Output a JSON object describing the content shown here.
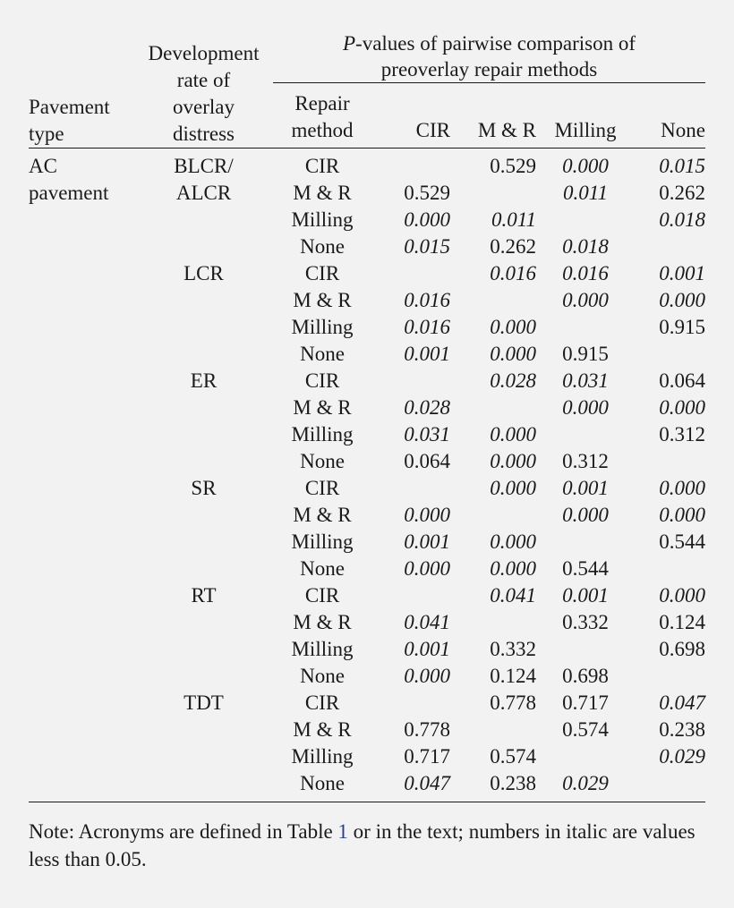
{
  "header": {
    "pavement_type": [
      "Pavement",
      "type"
    ],
    "development_rate": [
      "Development",
      "rate of",
      "overlay",
      "distress"
    ],
    "pvalues_title_italic": "P",
    "pvalues_title_rest_line1": "-values of pairwise comparison of",
    "pvalues_title_line2": "preoverlay repair methods",
    "repair_method": [
      "Repair",
      "method"
    ],
    "columns": [
      "CIR",
      "M & R",
      "Milling",
      "None"
    ]
  },
  "pavement_type_value": [
    "AC",
    "pavement"
  ],
  "groups": [
    {
      "rate": [
        "BLCR/",
        "ALCR"
      ],
      "rows": [
        {
          "method": "CIR",
          "values": [
            "",
            "0.529",
            "0.000",
            "0.015"
          ],
          "italic": [
            false,
            false,
            true,
            true
          ]
        },
        {
          "method": "M & R",
          "values": [
            "0.529",
            "",
            "0.011",
            "0.262"
          ],
          "italic": [
            false,
            false,
            true,
            false
          ]
        },
        {
          "method": "Milling",
          "values": [
            "0.000",
            "0.011",
            "",
            "0.018"
          ],
          "italic": [
            true,
            true,
            false,
            true
          ]
        },
        {
          "method": "None",
          "values": [
            "0.015",
            "0.262",
            "0.018",
            ""
          ],
          "italic": [
            true,
            false,
            true,
            false
          ]
        }
      ]
    },
    {
      "rate": [
        "LCR"
      ],
      "rows": [
        {
          "method": "CIR",
          "values": [
            "",
            "0.016",
            "0.016",
            "0.001"
          ],
          "italic": [
            false,
            true,
            true,
            true
          ]
        },
        {
          "method": "M & R",
          "values": [
            "0.016",
            "",
            "0.000",
            "0.000"
          ],
          "italic": [
            true,
            false,
            true,
            true
          ]
        },
        {
          "method": "Milling",
          "values": [
            "0.016",
            "0.000",
            "",
            "0.915"
          ],
          "italic": [
            true,
            true,
            false,
            false
          ]
        },
        {
          "method": "None",
          "values": [
            "0.001",
            "0.000",
            "0.915",
            ""
          ],
          "italic": [
            true,
            true,
            false,
            false
          ]
        }
      ]
    },
    {
      "rate": [
        "ER"
      ],
      "rows": [
        {
          "method": "CIR",
          "values": [
            "",
            "0.028",
            "0.031",
            "0.064"
          ],
          "italic": [
            false,
            true,
            true,
            false
          ]
        },
        {
          "method": "M & R",
          "values": [
            "0.028",
            "",
            "0.000",
            "0.000"
          ],
          "italic": [
            true,
            false,
            true,
            true
          ]
        },
        {
          "method": "Milling",
          "values": [
            "0.031",
            "0.000",
            "",
            "0.312"
          ],
          "italic": [
            true,
            true,
            false,
            false
          ]
        },
        {
          "method": "None",
          "values": [
            "0.064",
            "0.000",
            "0.312",
            ""
          ],
          "italic": [
            false,
            true,
            false,
            false
          ]
        }
      ]
    },
    {
      "rate": [
        "SR"
      ],
      "rows": [
        {
          "method": "CIR",
          "values": [
            "",
            "0.000",
            "0.001",
            "0.000"
          ],
          "italic": [
            false,
            true,
            true,
            true
          ]
        },
        {
          "method": "M & R",
          "values": [
            "0.000",
            "",
            "0.000",
            "0.000"
          ],
          "italic": [
            true,
            false,
            true,
            true
          ]
        },
        {
          "method": "Milling",
          "values": [
            "0.001",
            "0.000",
            "",
            "0.544"
          ],
          "italic": [
            true,
            true,
            false,
            false
          ]
        },
        {
          "method": "None",
          "values": [
            "0.000",
            "0.000",
            "0.544",
            ""
          ],
          "italic": [
            true,
            true,
            false,
            false
          ]
        }
      ]
    },
    {
      "rate": [
        "RT"
      ],
      "rows": [
        {
          "method": "CIR",
          "values": [
            "",
            "0.041",
            "0.001",
            "0.000"
          ],
          "italic": [
            false,
            true,
            true,
            true
          ]
        },
        {
          "method": "M & R",
          "values": [
            "0.041",
            "",
            "0.332",
            "0.124"
          ],
          "italic": [
            true,
            false,
            false,
            false
          ]
        },
        {
          "method": "Milling",
          "values": [
            "0.001",
            "0.332",
            "",
            "0.698"
          ],
          "italic": [
            true,
            false,
            false,
            false
          ]
        },
        {
          "method": "None",
          "values": [
            "0.000",
            "0.124",
            "0.698",
            ""
          ],
          "italic": [
            true,
            false,
            false,
            false
          ]
        }
      ]
    },
    {
      "rate": [
        "TDT"
      ],
      "rows": [
        {
          "method": "CIR",
          "values": [
            "",
            "0.778",
            "0.717",
            "0.047"
          ],
          "italic": [
            false,
            false,
            false,
            true
          ]
        },
        {
          "method": "M & R",
          "values": [
            "0.778",
            "",
            "0.574",
            "0.238"
          ],
          "italic": [
            false,
            false,
            false,
            false
          ]
        },
        {
          "method": "Milling",
          "values": [
            "0.717",
            "0.574",
            "",
            "0.029"
          ],
          "italic": [
            false,
            false,
            false,
            true
          ]
        },
        {
          "method": "None",
          "values": [
            "0.047",
            "0.238",
            "0.029",
            ""
          ],
          "italic": [
            true,
            false,
            true,
            false
          ]
        }
      ]
    }
  ],
  "note": {
    "before": "Note: Acronyms are defined in Table ",
    "table_ref": "1",
    "after": " or in the text; numbers in italic are values less than 0.05."
  },
  "colors": {
    "background": "#f2f2f2",
    "text": "#1a1a1a",
    "link": "#2a3f8f"
  }
}
